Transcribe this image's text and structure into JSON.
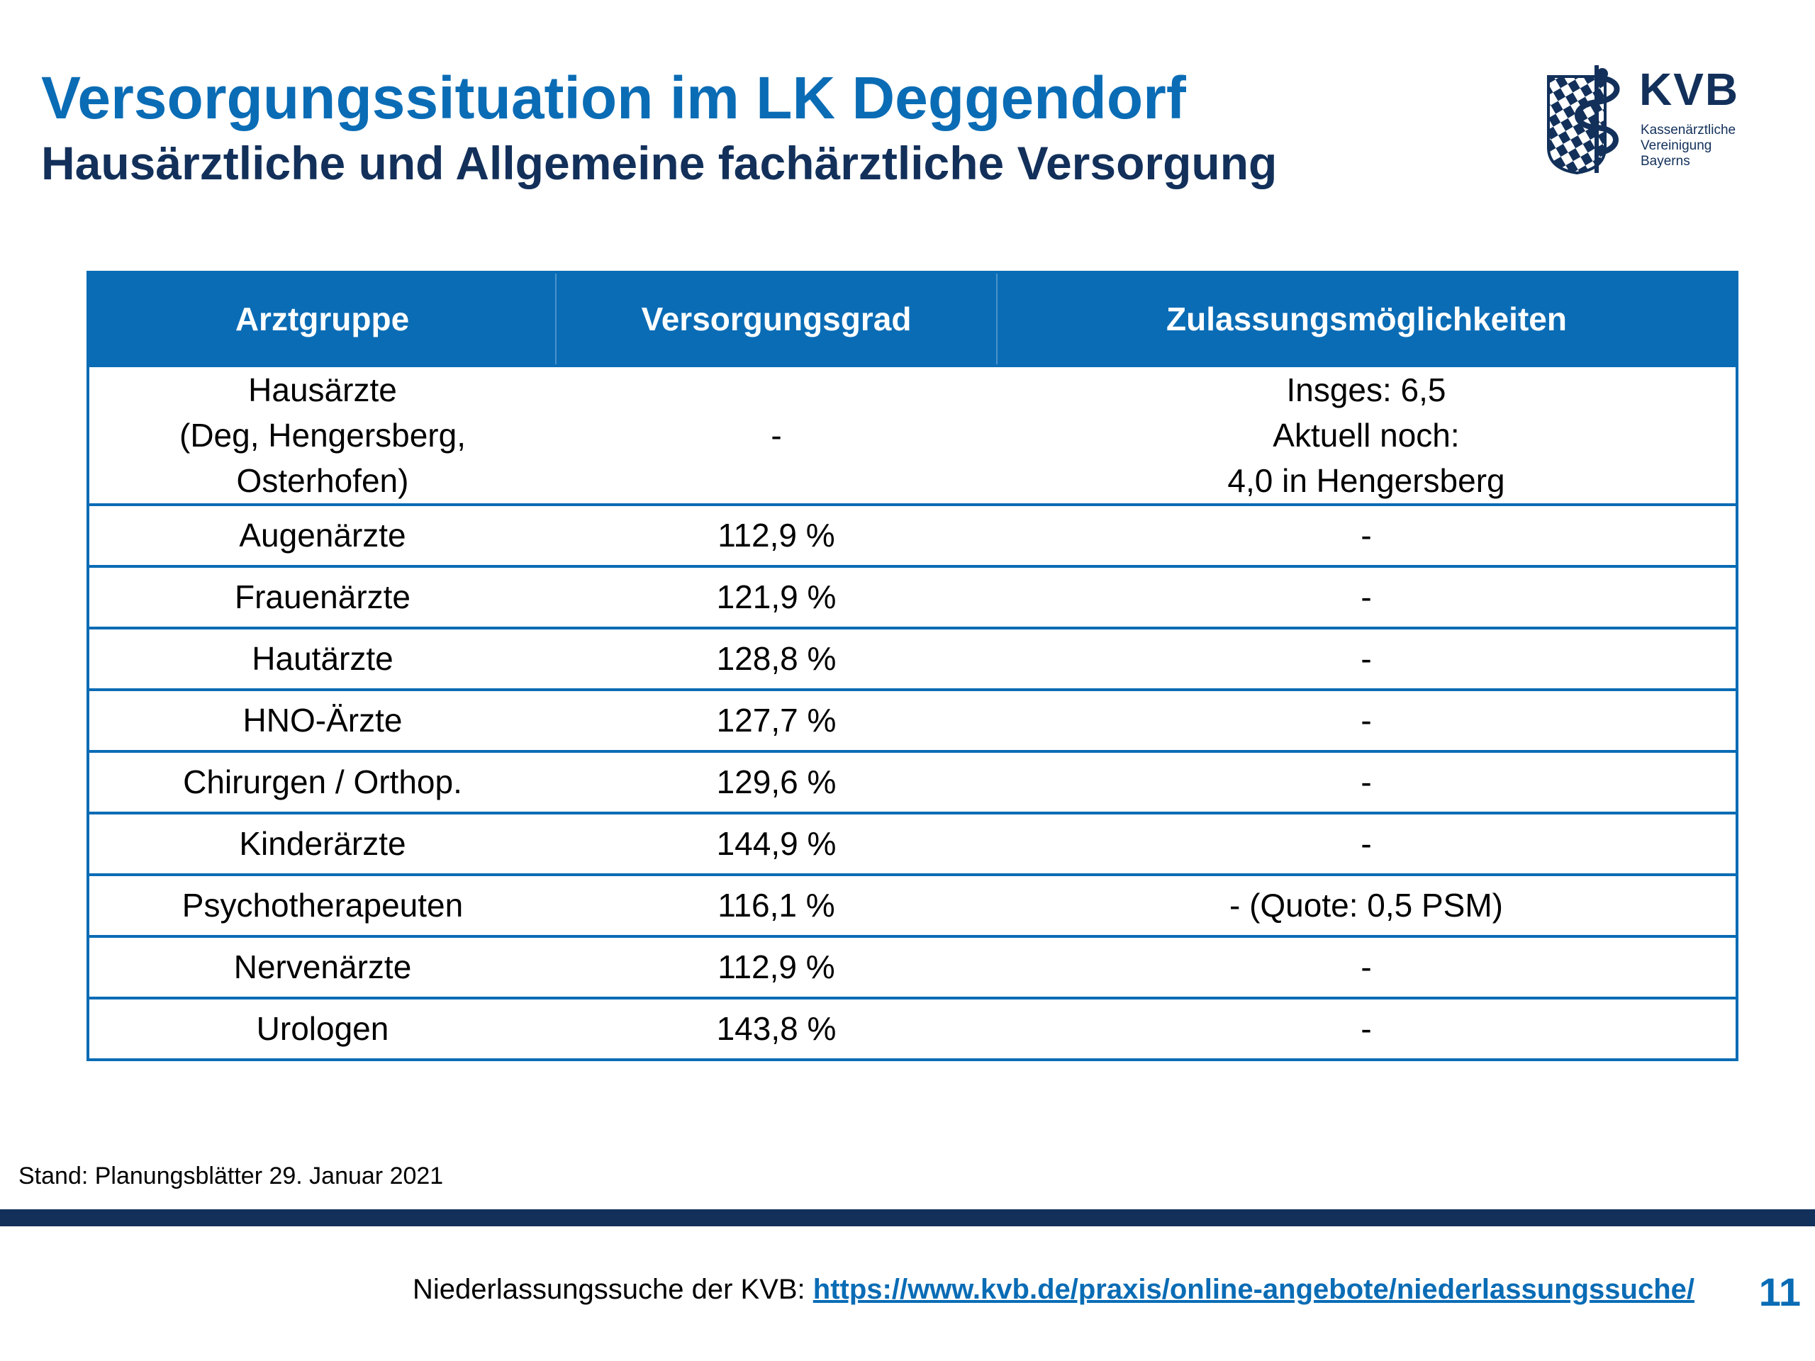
{
  "header": {
    "title": "Versorgungssituation im LK Deggendorf",
    "subtitle": "Hausärztliche und Allgemeine fachärztliche Versorgung"
  },
  "logo": {
    "abbr": "KVB",
    "line1": "Kassenärztliche",
    "line2": "Vereinigung",
    "line3": "Bayerns",
    "icon": "bavarian-shield-aesculapius-icon"
  },
  "table": {
    "headers": [
      "Arztgruppe",
      "Versorgungsgrad",
      "Zulassungsmöglichkeiten"
    ],
    "rows": [
      {
        "group": [
          "Hausärzte",
          "(Deg, Hengersberg,",
          "Osterhofen)"
        ],
        "grade": "-",
        "options": [
          "Insges: 6,5",
          "Aktuell noch:",
          "4,0 in Hengersberg"
        ]
      },
      {
        "group": "Augenärzte",
        "grade": "112,9 %",
        "options": "-"
      },
      {
        "group": "Frauenärzte",
        "grade": "121,9 %",
        "options": "-"
      },
      {
        "group": "Hautärzte",
        "grade": "128,8 %",
        "options": "-"
      },
      {
        "group": "HNO-Ärzte",
        "grade": "127,7 %",
        "options": "-"
      },
      {
        "group": "Chirurgen / Orthop.",
        "grade": "129,6 %",
        "options": "-"
      },
      {
        "group": "Kinderärzte",
        "grade": "144,9 %",
        "options": "-"
      },
      {
        "group": "Psychotherapeuten",
        "grade": "116,1 %",
        "options": "- (Quote: 0,5 PSM)"
      },
      {
        "group": "Nervenärzte",
        "grade": "112,9 %",
        "options": "-"
      },
      {
        "group": "Urologen",
        "grade": "143,8 %",
        "options": "-"
      }
    ]
  },
  "stand": "Stand: Planungsblätter 29. Januar 2021",
  "footer": {
    "prefix": "Niederlassungssuche der KVB: ",
    "link": "https://www.kvb.de/praxis/online-angebote/niederlassungssuche/",
    "page": "11"
  },
  "colors": {
    "accent": "#0a6cb5",
    "navy": "#12305a"
  }
}
